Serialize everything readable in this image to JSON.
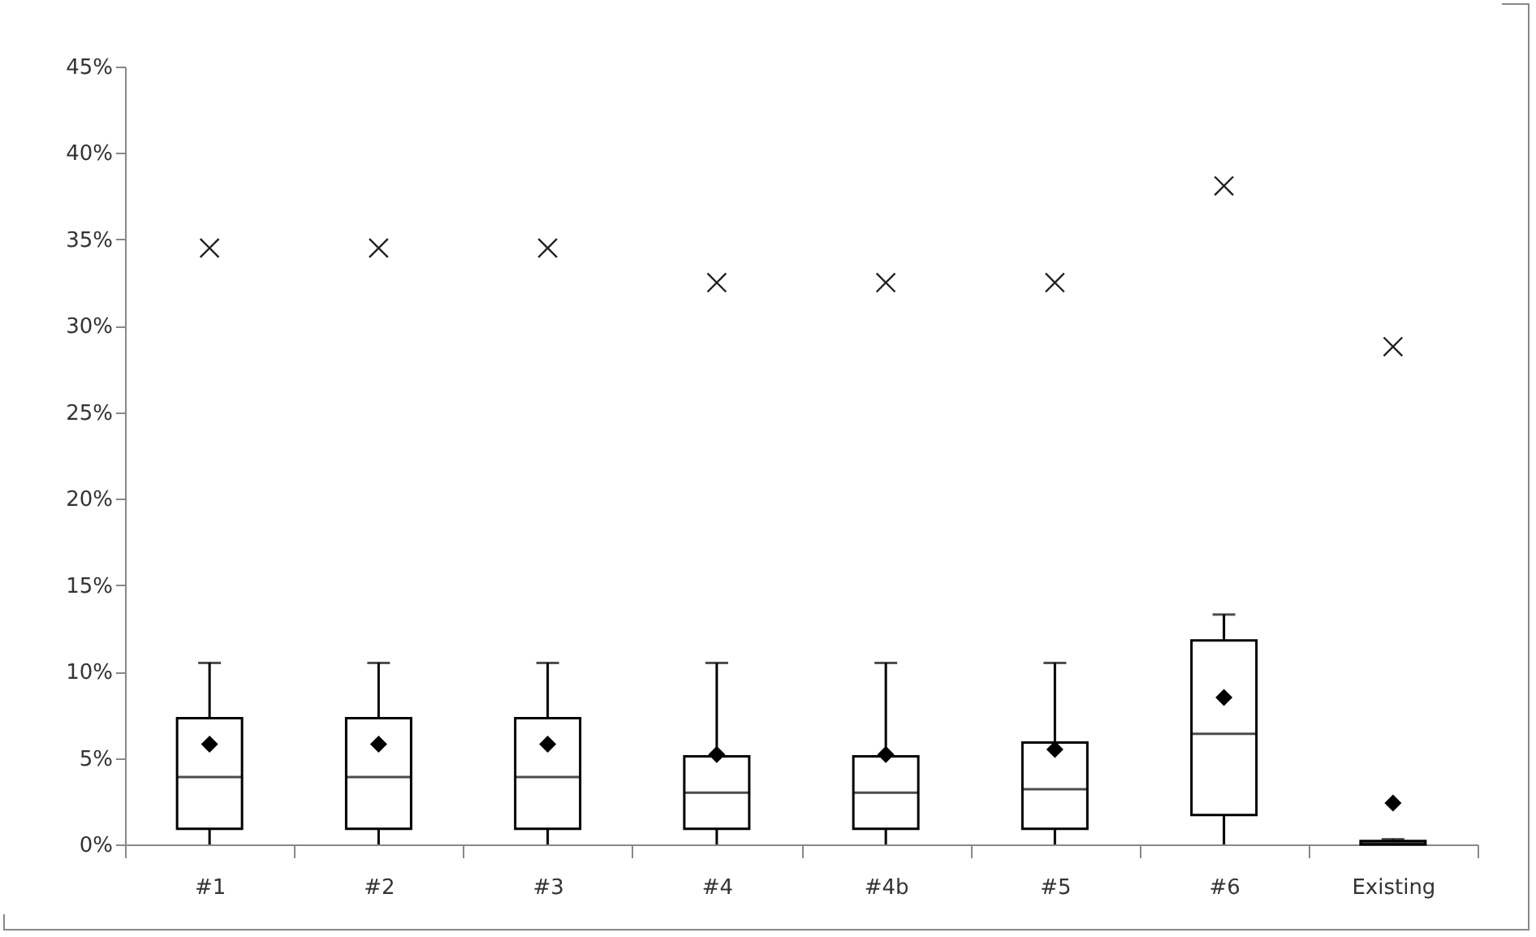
{
  "chart_data": {
    "type": "box",
    "categories": [
      "#1",
      "#2",
      "#3",
      "#4",
      "#4b",
      "#5",
      "#6",
      "Existing"
    ],
    "boxes": [
      {
        "low": 0,
        "q1": 0.9,
        "median": 3.9,
        "q3": 7.3,
        "high": 10.5,
        "mean": 5.8,
        "outliers": [
          34.5
        ]
      },
      {
        "low": 0,
        "q1": 0.9,
        "median": 3.9,
        "q3": 7.3,
        "high": 10.5,
        "mean": 5.8,
        "outliers": [
          34.5
        ]
      },
      {
        "low": 0,
        "q1": 0.9,
        "median": 3.9,
        "q3": 7.3,
        "high": 10.5,
        "mean": 5.8,
        "outliers": [
          34.5
        ]
      },
      {
        "low": 0,
        "q1": 0.9,
        "median": 3.0,
        "q3": 5.1,
        "high": 10.5,
        "mean": 5.2,
        "outliers": [
          32.5
        ]
      },
      {
        "low": 0,
        "q1": 0.9,
        "median": 3.0,
        "q3": 5.1,
        "high": 10.5,
        "mean": 5.2,
        "outliers": [
          32.5
        ]
      },
      {
        "low": 0,
        "q1": 0.9,
        "median": 3.2,
        "q3": 5.9,
        "high": 10.5,
        "mean": 5.5,
        "outliers": [
          32.5
        ]
      },
      {
        "low": 0,
        "q1": 1.7,
        "median": 6.4,
        "q3": 11.8,
        "high": 13.3,
        "mean": 8.5,
        "outliers": [
          38.1
        ]
      },
      {
        "low": 0,
        "q1": 0,
        "median": 0.1,
        "q3": 0.2,
        "high": 0.3,
        "mean": 2.4,
        "outliers": [
          28.8
        ]
      }
    ],
    "ylim": [
      0,
      45
    ],
    "yticks": [
      {
        "value": 0,
        "label": "0%"
      },
      {
        "value": 5,
        "label": "5%"
      },
      {
        "value": 10,
        "label": "10%"
      },
      {
        "value": 15,
        "label": "15%"
      },
      {
        "value": 20,
        "label": "20%"
      },
      {
        "value": 25,
        "label": "25%"
      },
      {
        "value": 30,
        "label": "30%"
      },
      {
        "value": 35,
        "label": "35%"
      },
      {
        "value": 40,
        "label": "40%"
      },
      {
        "value": 45,
        "label": "45%"
      }
    ]
  }
}
